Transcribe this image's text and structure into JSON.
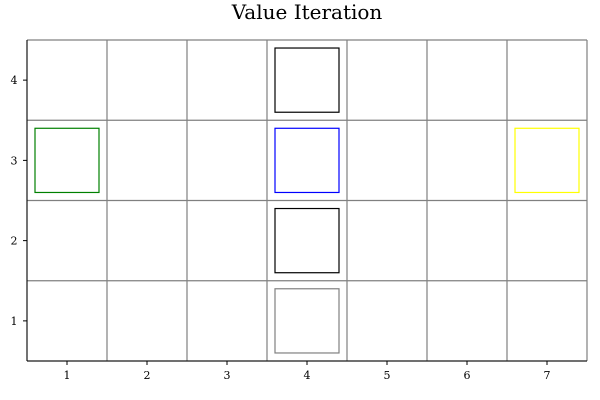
{
  "chart_data": {
    "type": "grid",
    "title": "Value Iteration",
    "xlabel": "",
    "ylabel": "",
    "xlim": [
      0.5,
      7.5
    ],
    "ylim": [
      0.5,
      4.5
    ],
    "x_ticks": [
      "1",
      "2",
      "3",
      "4",
      "5",
      "6",
      "7"
    ],
    "y_ticks": [
      "1",
      "2",
      "3",
      "4"
    ],
    "grid": true,
    "cells": [
      {
        "x": 4,
        "y": 4,
        "color": "#000000"
      },
      {
        "x": 1,
        "y": 3,
        "color": "#008000"
      },
      {
        "x": 4,
        "y": 3,
        "color": "#0000ff"
      },
      {
        "x": 7,
        "y": 3,
        "color": "#ffff00"
      },
      {
        "x": 4,
        "y": 2,
        "color": "#000000"
      },
      {
        "x": 4,
        "y": 1,
        "color": "#808080"
      }
    ]
  },
  "colors": {
    "grid_line": "#808080",
    "axis": "#000000"
  }
}
